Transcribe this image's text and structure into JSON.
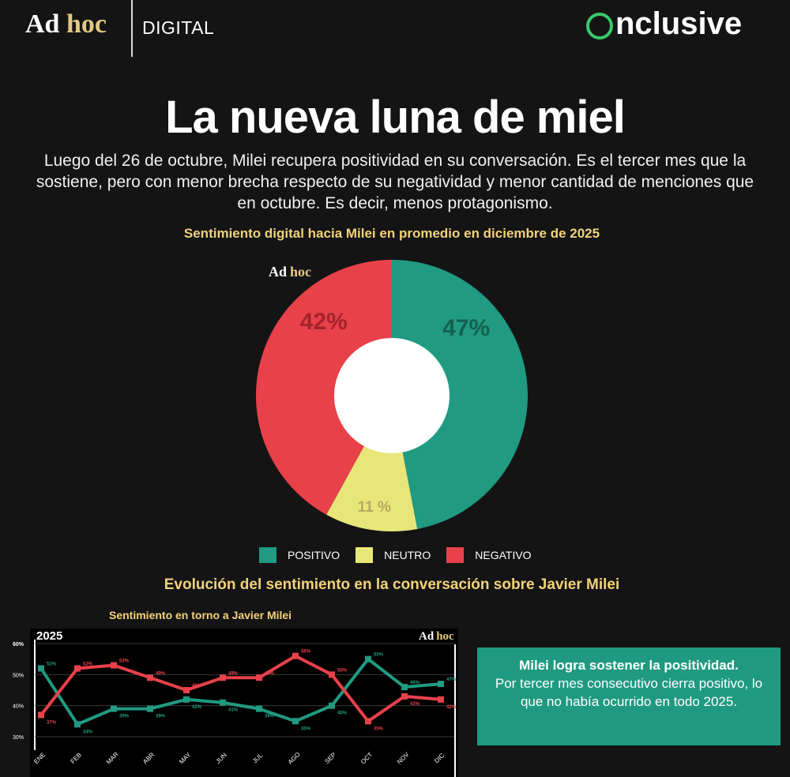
{
  "header": {
    "brand_ad": "Ad",
    "brand_hoc": "hoc",
    "brand_digital": "DIGITAL",
    "brand_onclusive_rest": "nclusive"
  },
  "title": "La nueva luna de miel",
  "subtitle": "Luego del 26 de octubre, Milei recupera positividad en su conversación. Es el tercer mes que la sostiene, pero con menor brecha respecto de su negatividad y menor cantidad de menciones que en octubre. Es decir, menos protagonismo.",
  "pie_watermark": {
    "ad": "Ad",
    "hoc": "hoc"
  },
  "line_watermark": {
    "ad": "Ad",
    "hoc": "hoc"
  },
  "colors": {
    "positivo": "#209a81",
    "neutro": "#e9e679",
    "negativo": "#e8414a",
    "accent": "#f2d27a"
  },
  "legend": {
    "positivo": "POSITIVO",
    "neutro": "NEUTRO",
    "negativo": "NEGATIVO"
  },
  "evolution_title": "Evolución del sentimiento en la conversación sobre Javier Milei",
  "callout": {
    "bold": "Milei logra sostener la positividad.",
    "text": "Por tercer  mes consecutivo cierra positivo, lo que no había ocurrido en todo 2025."
  },
  "chart_data": [
    {
      "type": "pie",
      "title": "Sentimiento digital hacia Milei en promedio en diciembre de 2025",
      "categories": [
        "POSITIVO",
        "NEUTRO",
        "NEGATIVO"
      ],
      "values": [
        47,
        11,
        42
      ],
      "labels": [
        "47%",
        "11 %",
        "42%"
      ]
    },
    {
      "type": "line",
      "title": "Sentimiento en torno a Javier Milei",
      "year_label": "2025",
      "categories": [
        "ENE",
        "FEB",
        "MAR",
        "ABR",
        "MAY",
        "JUN",
        "JUL",
        "AGO",
        "SEP",
        "OCT",
        "NOV",
        "DIC"
      ],
      "yticks": [
        "30%",
        "40%",
        "50%",
        "60%"
      ],
      "ylim": [
        30,
        60
      ],
      "series": [
        {
          "name": "POSITIVO",
          "values": [
            52,
            34,
            39,
            39,
            42,
            41,
            39,
            35,
            40,
            55,
            46,
            47
          ],
          "labels": [
            "52%",
            "34%",
            "39%",
            "39%",
            "42%",
            "41%",
            "39%",
            "35%",
            "40%",
            "55%",
            "46%",
            "47%"
          ]
        },
        {
          "name": "NEGATIVO",
          "values": [
            37,
            52,
            53,
            49,
            45,
            49,
            49,
            56,
            50,
            35,
            43,
            42
          ],
          "labels": [
            "37%",
            "52%",
            "53%",
            "49%",
            "45%",
            "49%",
            "49%",
            "56%",
            "50%",
            "35%",
            "43%",
            "42%"
          ]
        }
      ]
    }
  ]
}
